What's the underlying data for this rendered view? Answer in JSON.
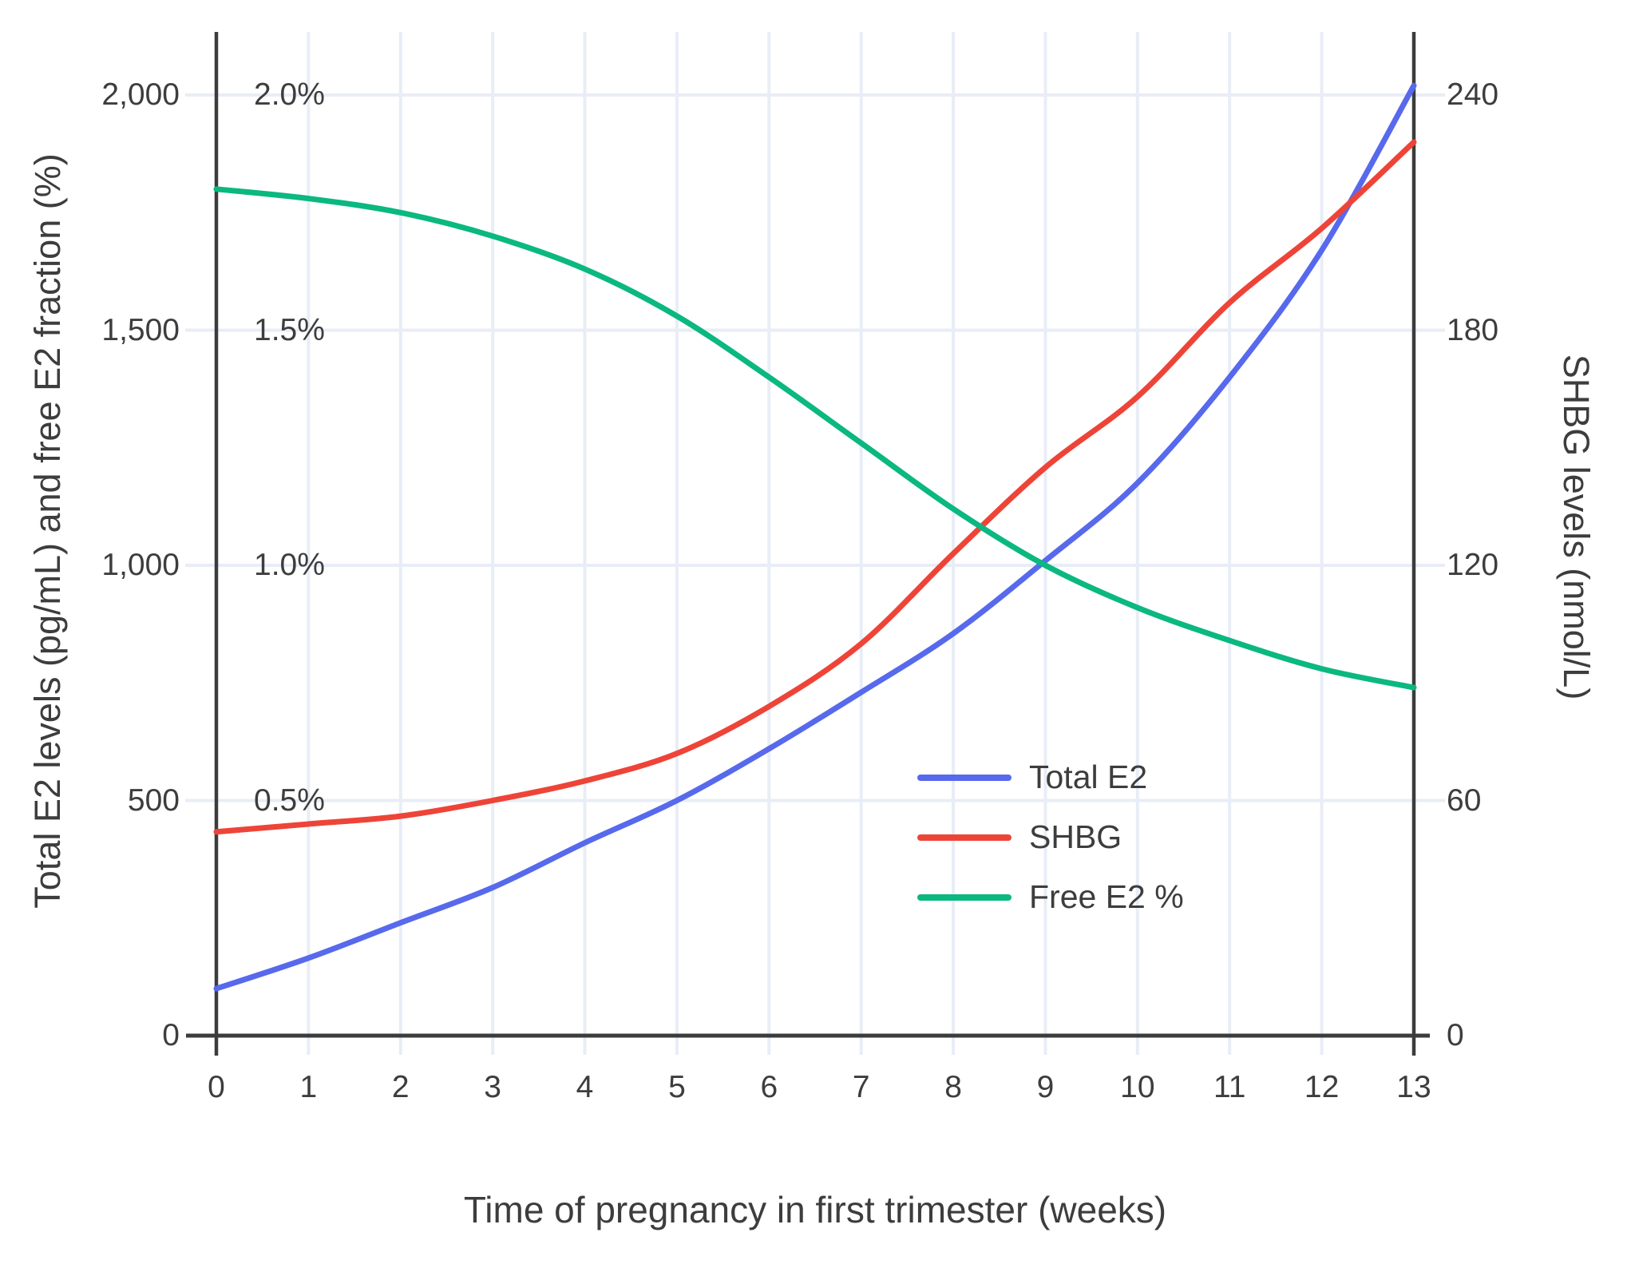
{
  "chart_data": {
    "type": "line",
    "x": [
      0,
      1,
      2,
      3,
      4,
      5,
      6,
      7,
      8,
      9,
      10,
      11,
      12,
      13
    ],
    "xlabel": "Time of pregnancy in first trimester (weeks)",
    "ylabel_left": "Total E2 levels (pg/mL) and free E2 fraction (%)",
    "ylabel_right": "SHBG levels (nmol/L)",
    "ylim_left": [
      0,
      2000
    ],
    "ylim_right": [
      0,
      240
    ],
    "ylim_percent": [
      0,
      2.0
    ],
    "grid": true,
    "legend_position": "inside-right",
    "series": [
      {
        "name": "Total E2",
        "axis": "left",
        "color": "#5769ec",
        "values": [
          100,
          165,
          240,
          315,
          410,
          500,
          610,
          730,
          855,
          1010,
          1175,
          1400,
          1670,
          2020
        ]
      },
      {
        "name": "SHBG",
        "axis": "right",
        "color": "#ee4438",
        "values": [
          52,
          54,
          56,
          60,
          65,
          72,
          84,
          100,
          123,
          145,
          163,
          187,
          206,
          228
        ]
      },
      {
        "name": "Free E2 %",
        "axis": "percent",
        "color": "#0ab880",
        "values": [
          1.8,
          1.78,
          1.75,
          1.7,
          1.63,
          1.53,
          1.4,
          1.26,
          1.12,
          1.0,
          0.91,
          0.84,
          0.78,
          0.74
        ]
      }
    ],
    "x_tick_labels": [
      "0",
      "1",
      "2",
      "3",
      "4",
      "5",
      "6",
      "7",
      "8",
      "9",
      "10",
      "11",
      "12",
      "13"
    ],
    "left_ticks": [
      {
        "value": 0,
        "label": "0"
      },
      {
        "value": 500,
        "label": "500"
      },
      {
        "value": 1000,
        "label": "1,000"
      },
      {
        "value": 1500,
        "label": "1,500"
      },
      {
        "value": 2000,
        "label": "2,000"
      }
    ],
    "right_ticks": [
      {
        "value": 0,
        "label": "0"
      },
      {
        "value": 60,
        "label": "60"
      },
      {
        "value": 120,
        "label": "120"
      },
      {
        "value": 180,
        "label": "180"
      },
      {
        "value": 240,
        "label": "240"
      }
    ],
    "percent_annotations": [
      {
        "value": 0.5,
        "label": "0.5%"
      },
      {
        "value": 1.0,
        "label": "1.0%"
      },
      {
        "value": 1.5,
        "label": "1.5%"
      },
      {
        "value": 2.0,
        "label": "2.0%"
      }
    ]
  },
  "colors": {
    "background": "#ffffff",
    "gridline": "#e8edf6",
    "axis_line": "#3c3c3c",
    "text": "#3d3d3d",
    "total_e2": "#5769ec",
    "shbg": "#ee4438",
    "free_e2": "#0ab880"
  }
}
